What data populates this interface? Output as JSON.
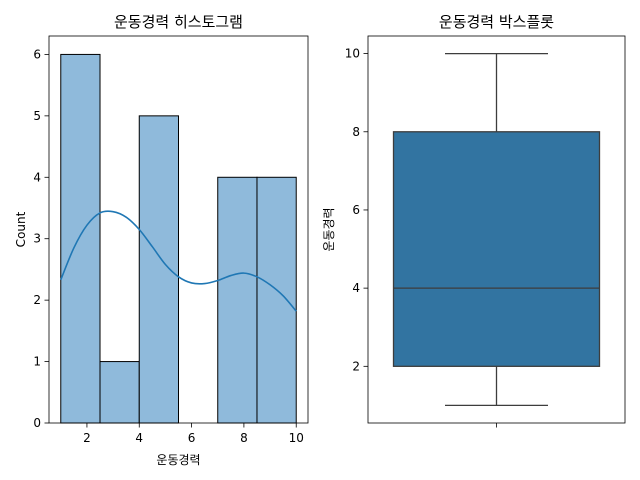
{
  "chart_data": [
    {
      "type": "histogram",
      "title": "운동경력 히스토그램",
      "xlabel": "운동경력",
      "ylabel": "Count",
      "xlim": [
        0.55,
        10.45
      ],
      "ylim": [
        0,
        6.3
      ],
      "xticks": [
        2,
        4,
        6,
        8,
        10
      ],
      "yticks": [
        0,
        1,
        2,
        3,
        4,
        5,
        6
      ],
      "bins": [
        {
          "x0": 1.0,
          "x1": 2.5,
          "count": 6
        },
        {
          "x0": 2.5,
          "x1": 4.0,
          "count": 1
        },
        {
          "x0": 4.0,
          "x1": 5.5,
          "count": 5
        },
        {
          "x0": 5.5,
          "x1": 7.0,
          "count": 0
        },
        {
          "x0": 7.0,
          "x1": 8.5,
          "count": 4
        },
        {
          "x0": 8.5,
          "x1": 10.0,
          "count": 4
        }
      ],
      "kde": {
        "x": [
          1.0,
          1.5,
          2.0,
          2.5,
          3.0,
          3.5,
          4.0,
          4.5,
          5.0,
          5.5,
          6.0,
          6.5,
          7.0,
          7.5,
          8.0,
          8.5,
          9.0,
          9.5,
          10.0
        ],
        "y": [
          2.33,
          2.85,
          3.22,
          3.42,
          3.44,
          3.35,
          3.15,
          2.87,
          2.58,
          2.38,
          2.28,
          2.27,
          2.32,
          2.4,
          2.44,
          2.38,
          2.25,
          2.07,
          1.82
        ]
      },
      "colors": {
        "bar": "#8fbadb",
        "edge": "#000000",
        "kde": "#1f77b4"
      }
    },
    {
      "type": "box",
      "title": "운동경력 박스플롯",
      "xlabel": "",
      "ylabel": "운동경력",
      "ylim": [
        0.55,
        10.45
      ],
      "yticks": [
        2,
        4,
        6,
        8,
        10
      ],
      "stats": {
        "whislo": 1,
        "q1": 2,
        "med": 4,
        "q3": 8,
        "whishi": 10
      },
      "colors": {
        "box": "#3274a1",
        "line": "#3d3d3d"
      }
    }
  ]
}
